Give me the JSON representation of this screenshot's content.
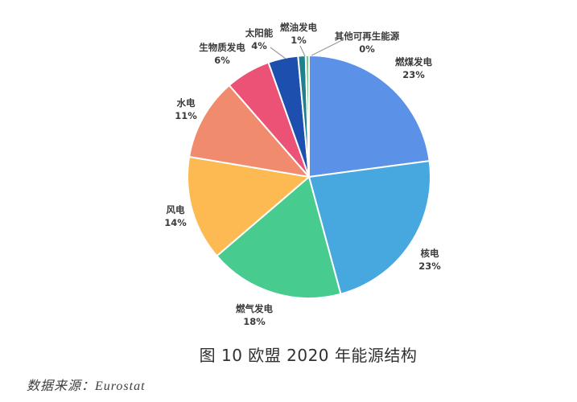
{
  "chart_data": {
    "type": "pie",
    "title": "图 10  欧盟 2020 年能源结构",
    "source": "数据来源：Eurostat",
    "start_angle_deg": 0,
    "direction": "clockwise",
    "slice_border_color": "#ffffff",
    "leader_line_color": "#9a9a9a",
    "slices": [
      {
        "key": "coal",
        "label": "燃煤发电",
        "value": 23,
        "pct_label": "23%",
        "color": "#5B92E8"
      },
      {
        "key": "nuclear",
        "label": "核电",
        "value": 23,
        "pct_label": "23%",
        "color": "#47A8DF"
      },
      {
        "key": "gas",
        "label": "燃气发电",
        "value": 18,
        "pct_label": "18%",
        "color": "#48CB8E"
      },
      {
        "key": "wind",
        "label": "风电",
        "value": 14,
        "pct_label": "14%",
        "color": "#FDBA52"
      },
      {
        "key": "hydro",
        "label": "水电",
        "value": 11,
        "pct_label": "11%",
        "color": "#F08B6E"
      },
      {
        "key": "biomass",
        "label": "生物质发电",
        "value": 6,
        "pct_label": "6%",
        "color": "#EC5276"
      },
      {
        "key": "solar",
        "label": "太阳能",
        "value": 4,
        "pct_label": "4%",
        "color": "#1C4FAE"
      },
      {
        "key": "oil",
        "label": "燃油发电",
        "value": 1,
        "pct_label": "1%",
        "color": "#21808D"
      },
      {
        "key": "other-renewables",
        "label": "其他可再生能源",
        "value": 0,
        "pct_label": "0%",
        "color": "#7CC893"
      }
    ]
  }
}
